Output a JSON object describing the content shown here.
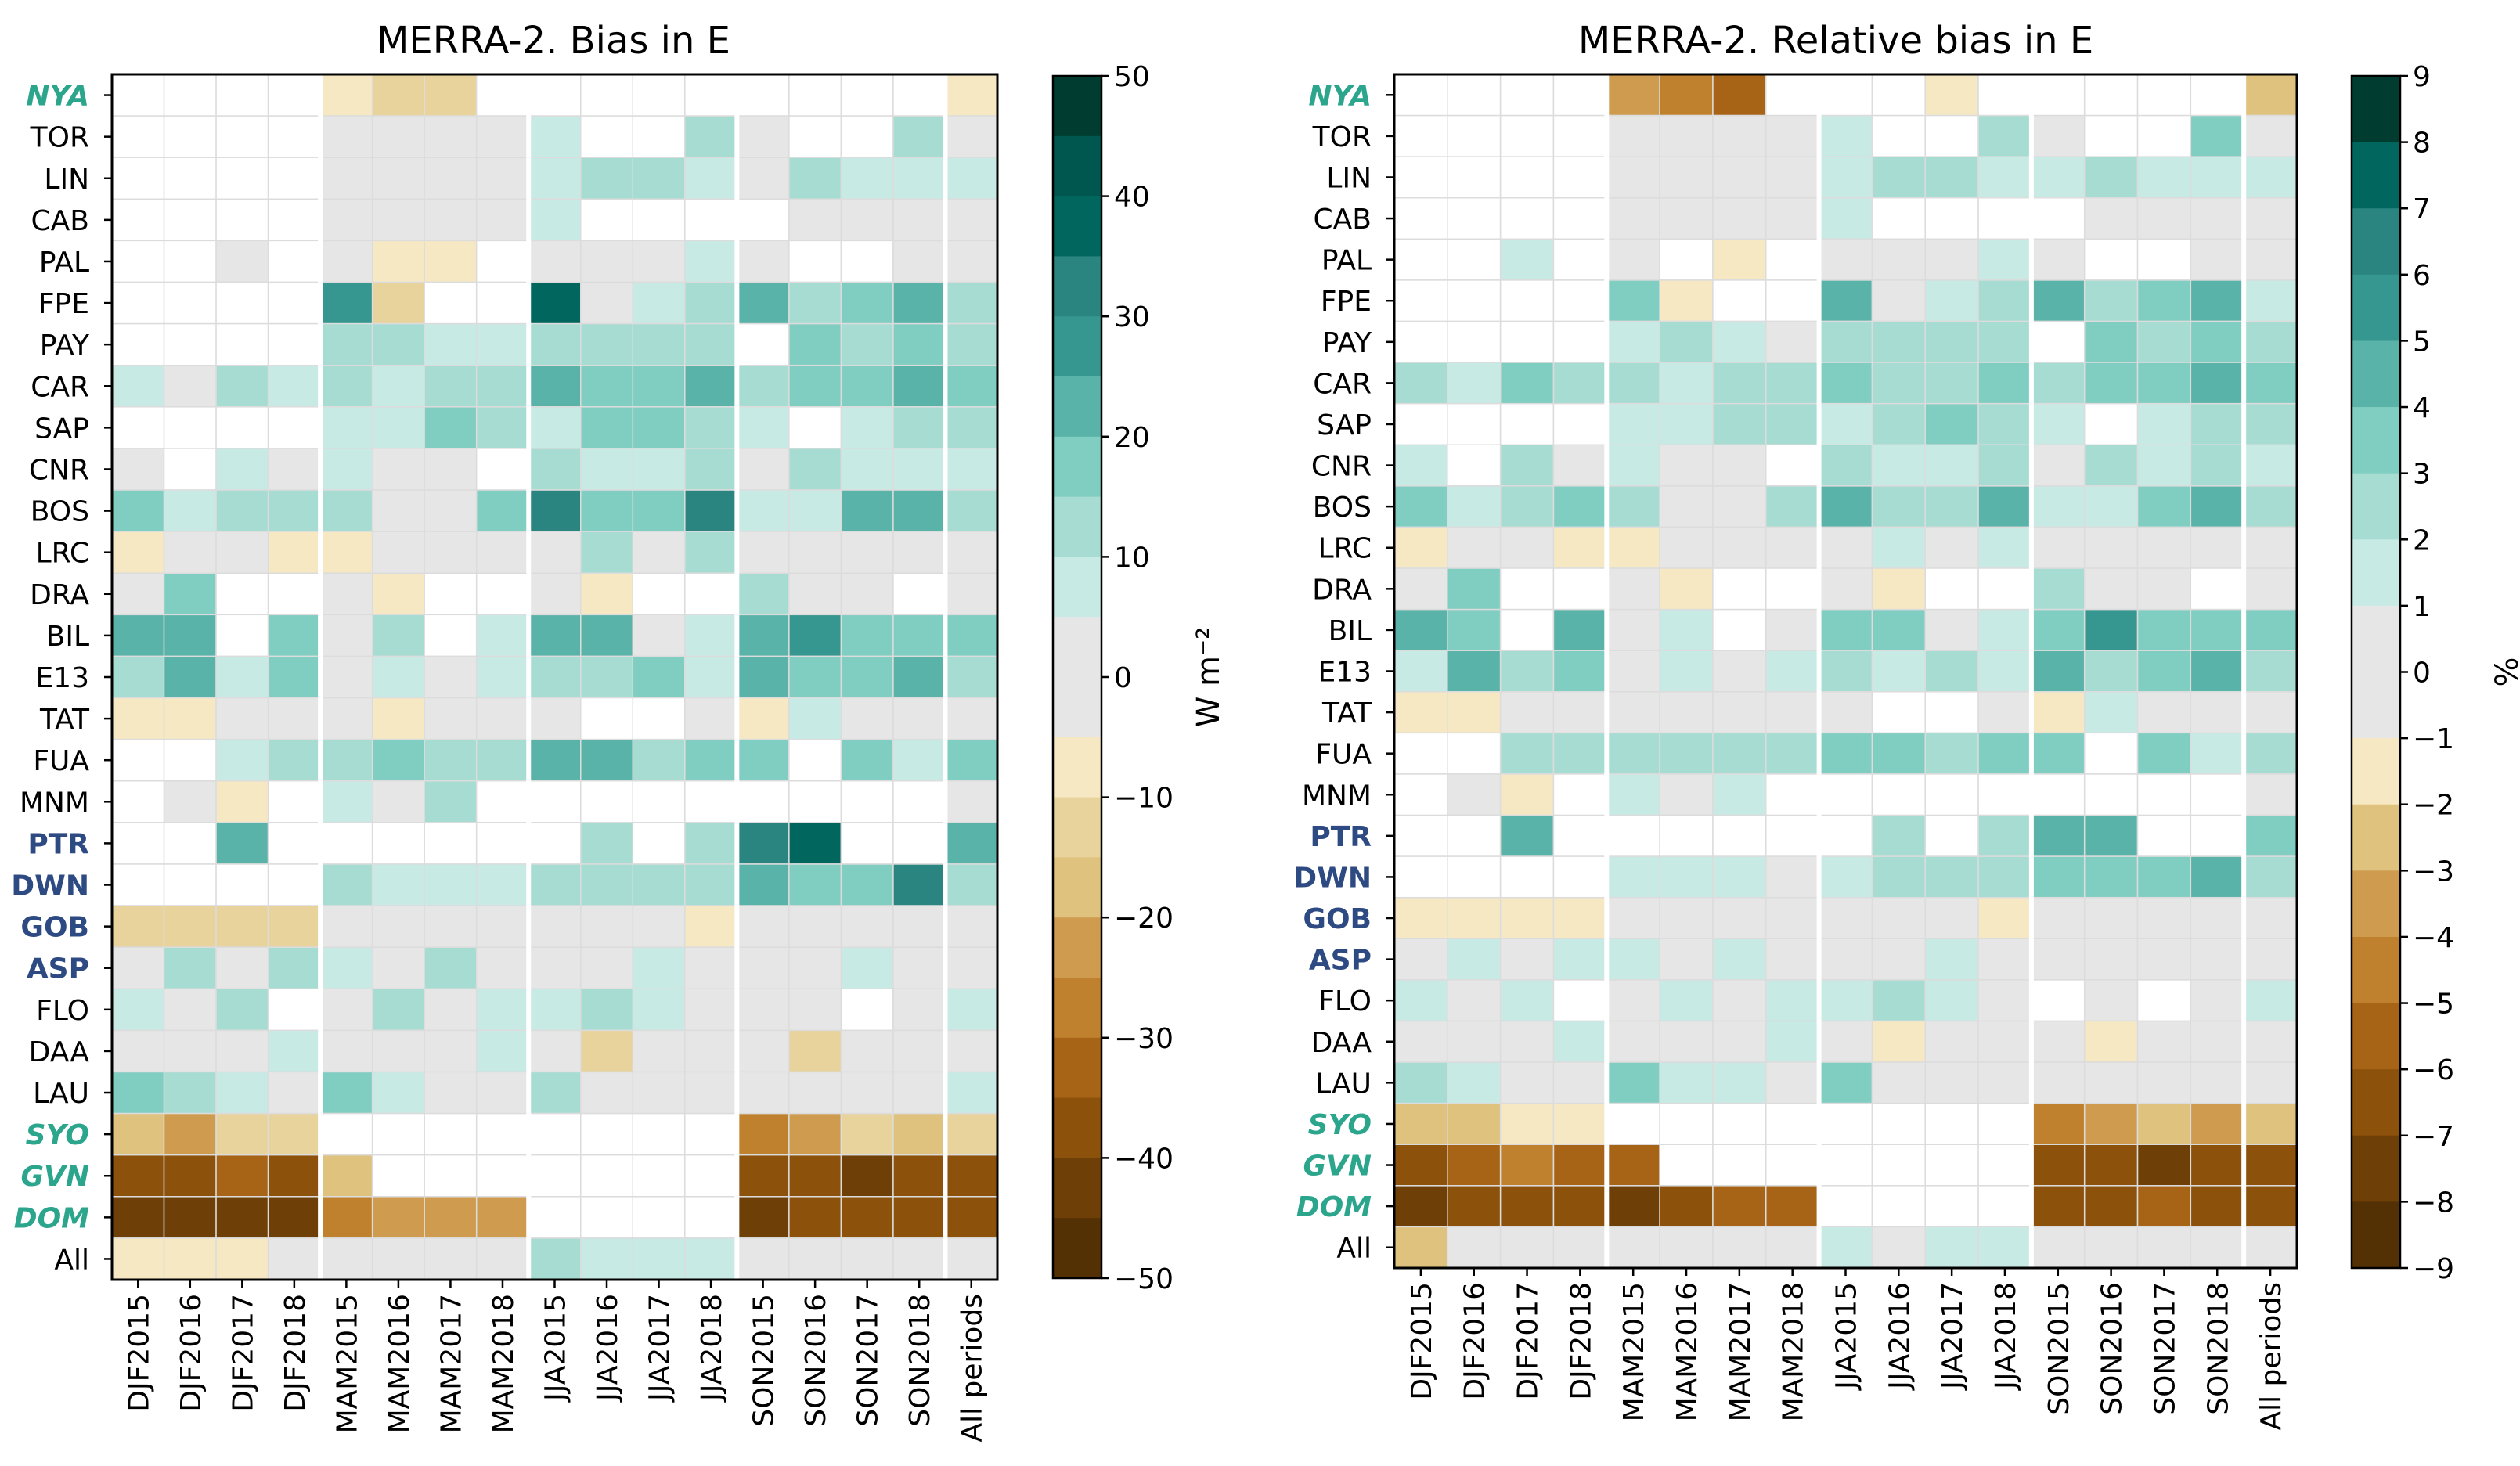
{
  "chart_data": [
    {
      "type": "heatmap",
      "title": "MERRA-2. Bias in E",
      "colorbar_label": "W m⁻²",
      "colorbar_ticks": [
        "50",
        "40",
        "30",
        "20",
        "10",
        "0",
        "−10",
        "−20",
        "−30",
        "−40",
        "−50"
      ],
      "colorbar_range": [
        -50,
        50
      ],
      "colorbar_levels": 20,
      "rows": [
        "NYA",
        "TOR",
        "LIN",
        "CAB",
        "PAL",
        "FPE",
        "PAY",
        "CAR",
        "SAP",
        "CNR",
        "BOS",
        "LRC",
        "DRA",
        "BIL",
        "E13",
        "TAT",
        "FUA",
        "MNM",
        "PTR",
        "DWN",
        "GOB",
        "ASP",
        "FLO",
        "DAA",
        "LAU",
        "SYO",
        "GVN",
        "DOM",
        "All"
      ],
      "columns": [
        "DJF2015",
        "DJF2016",
        "DJF2017",
        "DJF2018",
        "MAM2015",
        "MAM2016",
        "MAM2017",
        "MAM2018",
        "JJA2015",
        "JJA2016",
        "JJA2017",
        "JJA2018",
        "SON2015",
        "SON2016",
        "SON2017",
        "SON2018",
        "All periods"
      ],
      "values": [
        [
          null,
          null,
          null,
          null,
          -7,
          -12,
          -15,
          null,
          null,
          null,
          null,
          null,
          null,
          null,
          null,
          null,
          -7
        ],
        [
          null,
          null,
          null,
          null,
          2,
          2,
          2,
          2,
          7,
          null,
          null,
          12,
          2,
          null,
          null,
          12,
          2
        ],
        [
          null,
          null,
          null,
          null,
          2,
          2,
          2,
          2,
          7,
          12,
          12,
          7,
          2,
          12,
          7,
          7,
          7
        ],
        [
          null,
          null,
          null,
          null,
          2,
          2,
          2,
          2,
          7,
          null,
          null,
          null,
          null,
          2,
          2,
          2,
          2
        ],
        [
          null,
          null,
          2,
          null,
          2,
          -7,
          -7,
          null,
          2,
          2,
          2,
          7,
          2,
          null,
          null,
          2,
          2
        ],
        [
          null,
          null,
          null,
          null,
          27,
          -12,
          null,
          null,
          37,
          2,
          7,
          12,
          22,
          12,
          17,
          22,
          12
        ],
        [
          null,
          null,
          null,
          null,
          12,
          12,
          7,
          7,
          12,
          12,
          12,
          12,
          null,
          17,
          12,
          17,
          12
        ],
        [
          7,
          2,
          12,
          7,
          12,
          7,
          12,
          12,
          22,
          17,
          17,
          22,
          12,
          17,
          17,
          22,
          17
        ],
        [
          null,
          null,
          null,
          null,
          7,
          7,
          17,
          12,
          7,
          17,
          17,
          12,
          7,
          null,
          7,
          12,
          12
        ],
        [
          2,
          null,
          7,
          2,
          7,
          2,
          2,
          null,
          12,
          7,
          7,
          12,
          2,
          12,
          7,
          7,
          7
        ],
        [
          17,
          7,
          12,
          12,
          12,
          2,
          2,
          17,
          32,
          17,
          17,
          32,
          7,
          7,
          22,
          22,
          12
        ],
        [
          -7,
          2,
          2,
          -7,
          -7,
          2,
          2,
          2,
          2,
          12,
          2,
          12,
          2,
          2,
          2,
          2,
          2
        ],
        [
          2,
          17,
          null,
          null,
          2,
          -7,
          null,
          null,
          2,
          -7,
          null,
          null,
          12,
          2,
          2,
          null,
          2
        ],
        [
          22,
          22,
          null,
          17,
          2,
          12,
          null,
          7,
          22,
          22,
          2,
          7,
          22,
          27,
          17,
          17,
          17
        ],
        [
          12,
          22,
          7,
          17,
          2,
          7,
          2,
          7,
          12,
          12,
          17,
          7,
          22,
          17,
          17,
          22,
          12
        ],
        [
          -7,
          -7,
          2,
          2,
          2,
          -7,
          2,
          2,
          2,
          null,
          null,
          2,
          -7,
          7,
          2,
          2,
          2
        ],
        [
          null,
          null,
          7,
          12,
          12,
          17,
          12,
          12,
          22,
          22,
          12,
          17,
          17,
          null,
          17,
          7,
          17
        ],
        [
          null,
          2,
          -7,
          null,
          7,
          2,
          12,
          null,
          null,
          null,
          null,
          null,
          null,
          null,
          null,
          null,
          2
        ],
        [
          null,
          null,
          22,
          null,
          null,
          null,
          null,
          null,
          null,
          12,
          null,
          12,
          32,
          37,
          null,
          null,
          22
        ],
        [
          null,
          null,
          null,
          null,
          12,
          7,
          7,
          7,
          12,
          12,
          12,
          12,
          22,
          17,
          17,
          32,
          12
        ],
        [
          -12,
          -12,
          -12,
          -12,
          2,
          2,
          2,
          2,
          2,
          2,
          2,
          -7,
          2,
          2,
          2,
          2,
          2
        ],
        [
          2,
          12,
          2,
          12,
          7,
          2,
          12,
          2,
          2,
          2,
          7,
          2,
          2,
          2,
          7,
          2,
          2
        ],
        [
          7,
          2,
          12,
          null,
          2,
          12,
          2,
          7,
          7,
          12,
          7,
          2,
          2,
          2,
          null,
          2,
          7
        ],
        [
          2,
          2,
          2,
          7,
          2,
          2,
          2,
          7,
          2,
          -12,
          2,
          2,
          2,
          -12,
          2,
          2,
          2
        ],
        [
          17,
          12,
          7,
          2,
          17,
          7,
          2,
          2,
          12,
          2,
          2,
          2,
          2,
          2,
          2,
          2,
          7
        ],
        [
          -17,
          -22,
          -12,
          -12,
          null,
          null,
          null,
          null,
          null,
          null,
          null,
          null,
          -27,
          -22,
          -12,
          -17,
          -12
        ],
        [
          -37,
          -37,
          -32,
          -37,
          -17,
          null,
          null,
          null,
          null,
          null,
          null,
          null,
          -37,
          -37,
          -42,
          -37,
          -37
        ],
        [
          -42,
          -42,
          -42,
          -42,
          -27,
          -22,
          -22,
          -22,
          null,
          null,
          null,
          null,
          -42,
          -37,
          -37,
          -37,
          -37
        ],
        [
          -7,
          -7,
          -7,
          2,
          2,
          2,
          2,
          2,
          12,
          7,
          7,
          7,
          2,
          2,
          2,
          2,
          2
        ]
      ]
    },
    {
      "type": "heatmap",
      "title": "MERRA-2. Relative bias in E",
      "colorbar_label": "%",
      "colorbar_ticks": [
        "9",
        "8",
        "7",
        "6",
        "5",
        "4",
        "3",
        "2",
        "1",
        "0",
        "−1",
        "−2",
        "−3",
        "−4",
        "−5",
        "−6",
        "−7",
        "−8",
        "−9"
      ],
      "colorbar_range": [
        -9,
        9
      ],
      "colorbar_levels": 18,
      "rows": [
        "NYA",
        "TOR",
        "LIN",
        "CAB",
        "PAL",
        "FPE",
        "PAY",
        "CAR",
        "SAP",
        "CNR",
        "BOS",
        "LRC",
        "DRA",
        "BIL",
        "E13",
        "TAT",
        "FUA",
        "MNM",
        "PTR",
        "DWN",
        "GOB",
        "ASP",
        "FLO",
        "DAA",
        "LAU",
        "SYO",
        "GVN",
        "DOM",
        "All"
      ],
      "columns": [
        "DJF2015",
        "DJF2016",
        "DJF2017",
        "DJF2018",
        "MAM2015",
        "MAM2016",
        "MAM2017",
        "MAM2018",
        "JJA2015",
        "JJA2016",
        "JJA2017",
        "JJA2018",
        "SON2015",
        "SON2016",
        "SON2017",
        "SON2018",
        "All periods"
      ],
      "values": [
        [
          null,
          null,
          null,
          null,
          -3.5,
          -4.5,
          -5.5,
          null,
          null,
          null,
          -1.5,
          null,
          null,
          null,
          null,
          null,
          -2.5
        ],
        [
          null,
          null,
          null,
          null,
          0.5,
          0.5,
          0.5,
          0.5,
          1.5,
          null,
          null,
          2.5,
          0.5,
          null,
          null,
          3.5,
          0.5
        ],
        [
          null,
          null,
          null,
          null,
          0.5,
          0.5,
          0.5,
          0.5,
          1.5,
          2.5,
          2.5,
          1.5,
          1.5,
          2.5,
          1.5,
          1.5,
          1.5
        ],
        [
          null,
          null,
          null,
          null,
          0.5,
          0.5,
          0.5,
          0.5,
          1.5,
          null,
          null,
          null,
          null,
          0.5,
          0.5,
          0.5,
          0.5
        ],
        [
          null,
          null,
          1.5,
          null,
          0.5,
          null,
          -1.5,
          null,
          0.5,
          0.5,
          0.5,
          1.5,
          0.5,
          null,
          null,
          0.5,
          0.5
        ],
        [
          null,
          null,
          null,
          null,
          3.5,
          -1.5,
          null,
          null,
          4.5,
          0.5,
          1.5,
          2.5,
          4.5,
          2.5,
          3.5,
          4.5,
          1.5
        ],
        [
          null,
          null,
          null,
          null,
          1.5,
          2.5,
          1.5,
          0.5,
          2.5,
          2.5,
          2.5,
          2.5,
          null,
          3.5,
          2.5,
          3.5,
          2.5
        ],
        [
          2.5,
          1.5,
          3.5,
          2.5,
          2.5,
          1.5,
          2.5,
          2.5,
          3.5,
          2.5,
          2.5,
          3.5,
          2.5,
          3.5,
          3.5,
          4.5,
          3.5
        ],
        [
          null,
          null,
          null,
          null,
          1.5,
          1.5,
          2.5,
          2.5,
          1.5,
          2.5,
          3.5,
          2.5,
          1.5,
          null,
          1.5,
          2.5,
          2.5
        ],
        [
          1.5,
          null,
          2.5,
          0.5,
          1.5,
          0.5,
          0.5,
          null,
          2.5,
          1.5,
          1.5,
          2.5,
          0.5,
          2.5,
          1.5,
          2.5,
          1.5
        ],
        [
          3.5,
          1.5,
          2.5,
          3.5,
          2.5,
          0.5,
          0.5,
          2.5,
          4.5,
          2.5,
          2.5,
          4.5,
          1.5,
          1.5,
          3.5,
          4.5,
          2.5
        ],
        [
          -1.5,
          0.5,
          0.5,
          -1.5,
          -1.5,
          0.5,
          0.5,
          0.5,
          0.5,
          1.5,
          0.5,
          1.5,
          0.5,
          0.5,
          0.5,
          0.5,
          0.5
        ],
        [
          0.5,
          3.5,
          null,
          null,
          0.5,
          -1.5,
          null,
          null,
          0.5,
          -1.5,
          null,
          null,
          2.5,
          0.5,
          0.5,
          null,
          0.5
        ],
        [
          4.5,
          3.5,
          null,
          4.5,
          0.5,
          1.5,
          null,
          0.5,
          3.5,
          3.5,
          0.5,
          1.5,
          3.5,
          5.5,
          3.5,
          3.5,
          3.5
        ],
        [
          1.5,
          4.5,
          2.5,
          3.5,
          0.5,
          1.5,
          0.5,
          1.5,
          2.5,
          1.5,
          2.5,
          1.5,
          4.5,
          2.5,
          3.5,
          4.5,
          2.5
        ],
        [
          -1.5,
          -1.5,
          0.5,
          0.5,
          0.5,
          0.5,
          0.5,
          0.5,
          0.5,
          null,
          null,
          0.5,
          -1.5,
          1.5,
          0.5,
          0.5,
          0.5
        ],
        [
          null,
          null,
          2.5,
          2.5,
          2.5,
          2.5,
          2.5,
          2.5,
          3.5,
          3.5,
          2.5,
          3.5,
          3.5,
          null,
          3.5,
          1.5,
          2.5
        ],
        [
          null,
          0.5,
          -1.5,
          null,
          1.5,
          0.5,
          1.5,
          null,
          null,
          null,
          null,
          null,
          null,
          null,
          null,
          null,
          0.5
        ],
        [
          null,
          null,
          4.5,
          null,
          null,
          null,
          null,
          null,
          null,
          2.5,
          null,
          2.5,
          4.5,
          4.5,
          null,
          null,
          3.5
        ],
        [
          null,
          null,
          null,
          null,
          1.5,
          1.5,
          1.5,
          0.5,
          1.5,
          2.5,
          2.5,
          2.5,
          3.5,
          3.5,
          3.5,
          4.5,
          2.5
        ],
        [
          -1.5,
          -1.5,
          -1.5,
          -1.5,
          0.5,
          0.5,
          0.5,
          0.5,
          0.5,
          0.5,
          0.5,
          -1.5,
          0.5,
          0.5,
          0.5,
          0.5,
          0.5
        ],
        [
          0.5,
          1.5,
          0.5,
          1.5,
          1.5,
          0.5,
          1.5,
          0.5,
          0.5,
          0.5,
          1.5,
          0.5,
          0.5,
          0.5,
          0.5,
          0.5,
          0.5
        ],
        [
          1.5,
          0.5,
          1.5,
          null,
          0.5,
          1.5,
          0.5,
          1.5,
          1.5,
          2.5,
          1.5,
          0.5,
          null,
          0.5,
          null,
          0.5,
          1.5
        ],
        [
          0.5,
          0.5,
          0.5,
          1.5,
          0.5,
          0.5,
          0.5,
          1.5,
          0.5,
          -1.5,
          0.5,
          0.5,
          0.5,
          -1.5,
          0.5,
          0.5,
          0.5
        ],
        [
          2.5,
          1.5,
          0.5,
          0.5,
          3.5,
          1.5,
          1.5,
          0.5,
          3.5,
          0.5,
          0.5,
          0.5,
          0.5,
          0.5,
          0.5,
          0.5,
          0.5
        ],
        [
          -2.5,
          -2.5,
          -1.5,
          -1.5,
          null,
          null,
          null,
          null,
          null,
          null,
          null,
          null,
          -4.5,
          -3.5,
          -2.5,
          -3.5,
          -2.5
        ],
        [
          -6.5,
          -5.5,
          -4.5,
          -5.5,
          -5.5,
          null,
          null,
          null,
          null,
          null,
          null,
          null,
          -6.5,
          -6.5,
          -7.5,
          -6.5,
          -6.5
        ],
        [
          -7.5,
          -6.5,
          -6.5,
          -6.5,
          -7.5,
          -6.5,
          -5.5,
          -5.5,
          null,
          null,
          null,
          null,
          -6.5,
          -6.5,
          -5.5,
          -6.5,
          -6.5
        ],
        [
          -2.5,
          0.5,
          0.5,
          0.5,
          0.5,
          0.5,
          0.5,
          0.5,
          1.5,
          0.5,
          1.5,
          1.5,
          0.5,
          0.5,
          0.5,
          0.5,
          0.5
        ]
      ]
    }
  ],
  "row_label_styles": {
    "green": [
      "NYA",
      "SYO",
      "GVN",
      "DOM"
    ],
    "blue": [
      "PTR",
      "DWN",
      "GOB",
      "ASP"
    ]
  },
  "colors": {
    "label_green": "#2ca58d",
    "label_blue": "#2e4a82",
    "empty_cell": "#ffffff",
    "cell_border": "#dcdcdc",
    "group_separator": "#ffffff"
  }
}
